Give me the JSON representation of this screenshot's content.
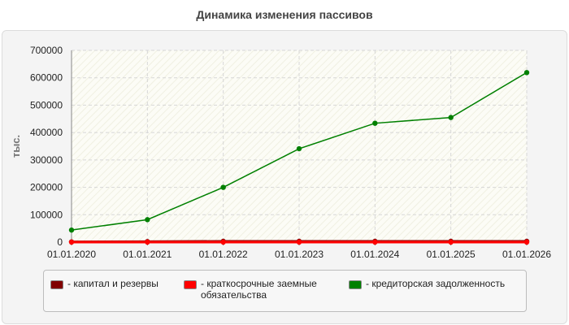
{
  "chart_data": {
    "type": "line",
    "title": "Динамика изменения пассивов",
    "ylabel": "тыс.",
    "xlabel": "",
    "x": [
      "01.01.2020",
      "01.01.2021",
      "01.01.2022",
      "01.01.2023",
      "01.01.2024",
      "01.01.2025",
      "01.01.2026"
    ],
    "ylim": [
      0,
      700000
    ],
    "yticks": [
      "0",
      "100000",
      "200000",
      "300000",
      "400000",
      "500000",
      "600000",
      "700000"
    ],
    "grid": true,
    "legend_position": "bottom",
    "series": [
      {
        "name": "- капитал и резервы",
        "color": "#800000",
        "values": [
          1000,
          2000,
          3000,
          3000,
          3000,
          3000,
          3000
        ]
      },
      {
        "name": "- краткосрочные заемные обязательства",
        "color": "#ff0000",
        "values": [
          0,
          0,
          0,
          0,
          0,
          0,
          0
        ]
      },
      {
        "name": "- кредиторская задолженность",
        "color": "#008000",
        "values": [
          44000,
          82000,
          200000,
          341000,
          434000,
          455000,
          619000
        ]
      }
    ]
  }
}
